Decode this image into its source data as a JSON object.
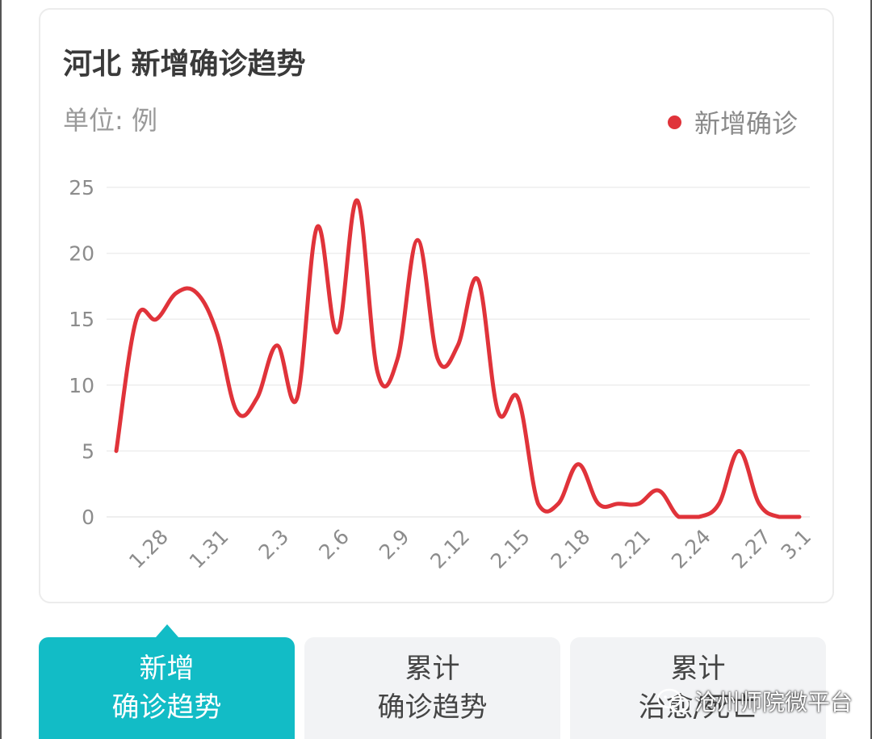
{
  "title": "河北 新增确诊趋势",
  "unit_label": "单位: 例",
  "legend": {
    "label": "新增确诊",
    "color": "#e0333a"
  },
  "colors": {
    "accent": "#12bcc6",
    "line": "#e0333a",
    "grid": "#eeeeee"
  },
  "chart_data": {
    "type": "line",
    "title": "河北 新增确诊趋势",
    "ylabel": "单位: 例",
    "ylim": [
      0,
      25
    ],
    "yticks": [
      "0",
      "5",
      "10",
      "15",
      "20",
      "25"
    ],
    "xticks": [
      "1.28",
      "1.31",
      "2.3",
      "2.6",
      "2.9",
      "2.12",
      "2.15",
      "2.18",
      "2.21",
      "2.24",
      "2.27",
      "3.1"
    ],
    "grid": true,
    "legend_position": "top-right",
    "x": [
      "1.26",
      "1.27",
      "1.28",
      "1.29",
      "1.30",
      "1.31",
      "2.1",
      "2.2",
      "2.3",
      "2.4",
      "2.5",
      "2.6",
      "2.7",
      "2.8",
      "2.9",
      "2.10",
      "2.11",
      "2.12",
      "2.13",
      "2.14",
      "2.15",
      "2.16",
      "2.17",
      "2.18",
      "2.19",
      "2.20",
      "2.21",
      "2.22",
      "2.23",
      "2.24",
      "2.25",
      "2.26",
      "2.27",
      "2.28",
      "3.1"
    ],
    "series": [
      {
        "name": "新增确诊",
        "values": [
          5,
          15,
          15,
          17,
          17,
          14,
          8,
          9,
          13,
          9,
          22,
          14,
          24,
          11,
          12,
          21,
          12,
          13,
          18,
          8,
          9,
          1,
          1,
          4,
          1,
          1,
          1,
          2,
          0,
          0,
          1,
          5,
          1,
          0,
          0
        ]
      }
    ]
  },
  "tabs": [
    {
      "line1": "新增",
      "line2": "确诊趋势",
      "active": true
    },
    {
      "line1": "累计",
      "line2": "确诊趋势",
      "active": false
    },
    {
      "line1": "累计",
      "line2": "治愈/死亡",
      "active": false
    }
  ],
  "watermark": "沧州师院微平台"
}
